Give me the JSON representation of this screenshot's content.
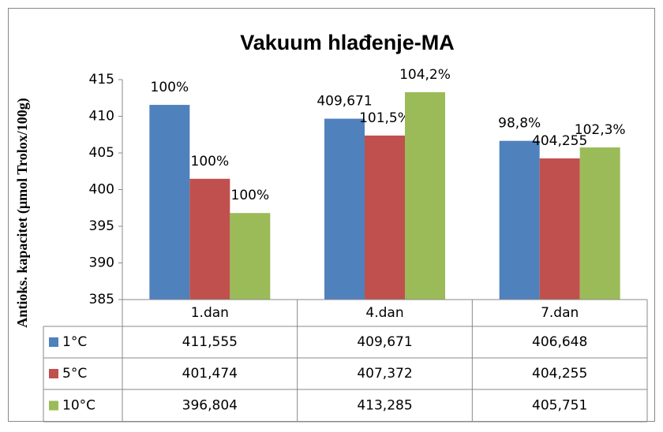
{
  "chart_data": {
    "type": "bar",
    "title": "Vakuum hlađenje-MA",
    "y_label": "Antioks. kapacitet (µmol Trolox/100g)",
    "categories": [
      "1.dan",
      "4.dan",
      "7.dan"
    ],
    "series": [
      {
        "name": "1°C",
        "color": "#4f81bd",
        "values": [
          411.555,
          409.671,
          406.648
        ],
        "value_labels": [
          "411,555",
          "409,671",
          "406,648"
        ],
        "bar_labels": [
          "100%",
          "409,671",
          "98,8%"
        ]
      },
      {
        "name": "5°C",
        "color": "#c0504d",
        "values": [
          401.474,
          407.372,
          404.255
        ],
        "value_labels": [
          "401,474",
          "407,372",
          "404,255"
        ],
        "bar_labels": [
          "100%",
          "101,5%",
          "404,255"
        ]
      },
      {
        "name": "10°C",
        "color": "#9bbb59",
        "values": [
          396.804,
          413.285,
          405.751
        ],
        "value_labels": [
          "396,804",
          "413,285",
          "405,751"
        ],
        "bar_labels": [
          "100%",
          "104,2%",
          "102,3%"
        ]
      }
    ],
    "ylim": [
      385,
      415
    ],
    "yticks": [
      385,
      390,
      395,
      400,
      405,
      410,
      415
    ],
    "grid": false
  }
}
